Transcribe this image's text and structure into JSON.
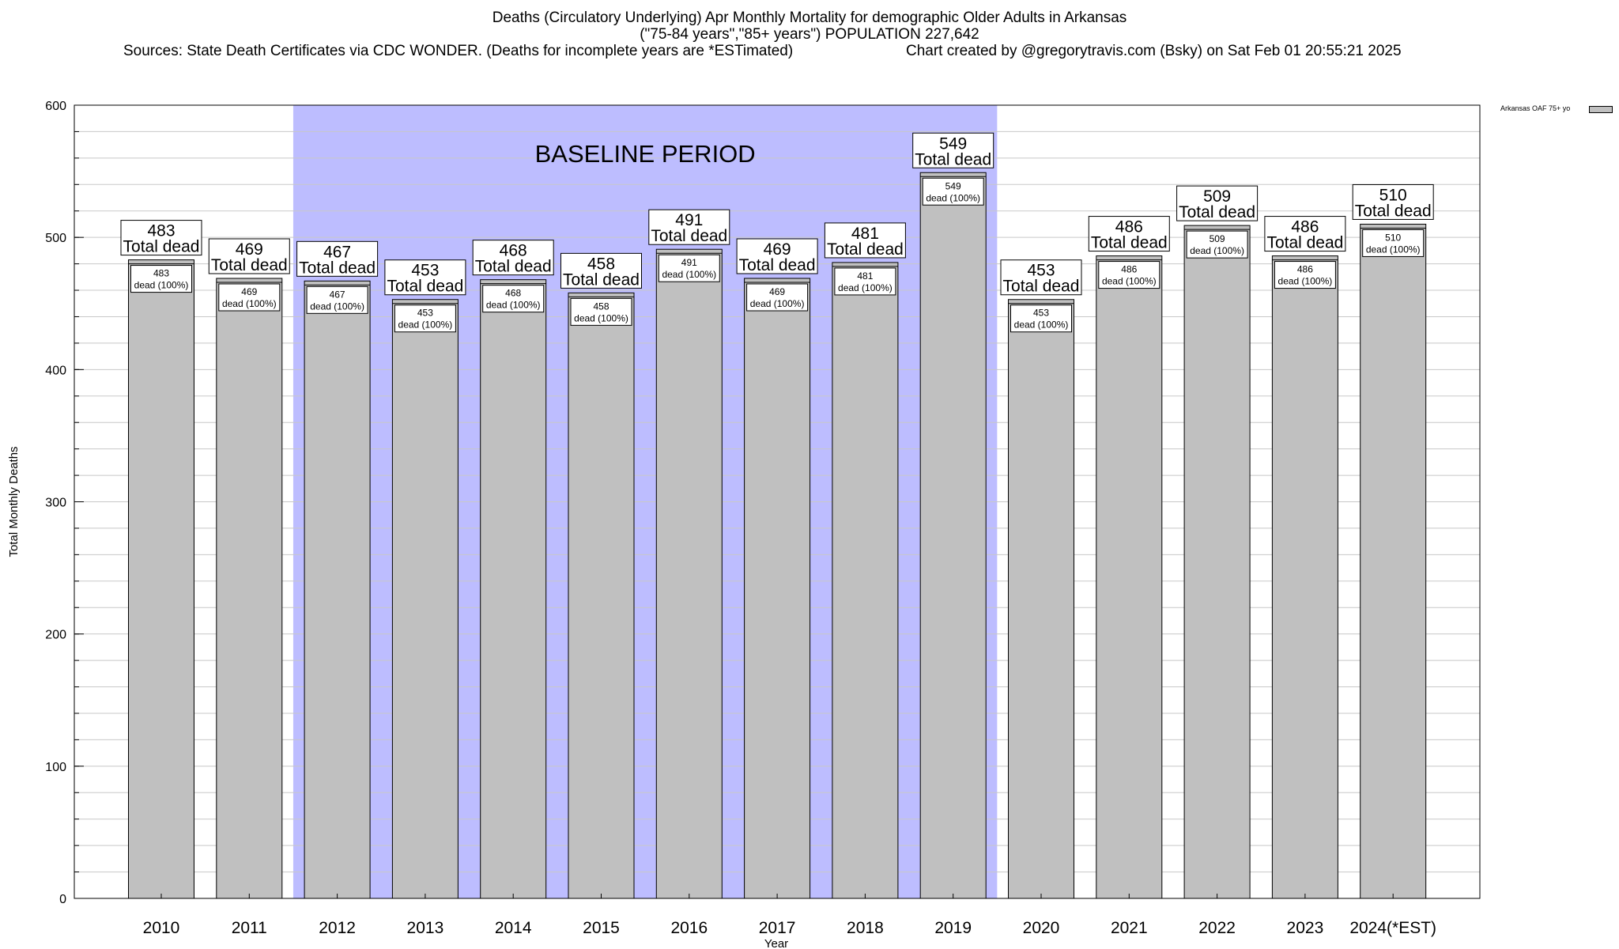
{
  "header": {
    "title_line1": "Deaths (Circulatory Underlying) Apr Monthly Mortality for demographic Older Adults in Arkansas",
    "title_line2": "(\"75-84 years\",\"85+ years\") POPULATION 227,642",
    "sources": "Sources: State Death Certificates via CDC WONDER. (Deaths for incomplete years are *ESTimated)",
    "credit": "Chart created by @gregorytravis.com (Bsky) on Sat Feb 01 20:55:21 2025"
  },
  "legend": {
    "label": "Arkansas OAF 75+ yo"
  },
  "chart_data": {
    "type": "bar",
    "categories": [
      "2010",
      "2011",
      "2012",
      "2013",
      "2014",
      "2015",
      "2016",
      "2017",
      "2018",
      "2019",
      "2020",
      "2021",
      "2022",
      "2023",
      "2024(*EST)"
    ],
    "series": [
      {
        "name": "Arkansas OAF 75+ yo",
        "values": [
          483,
          469,
          467,
          453,
          468,
          458,
          491,
          469,
          481,
          549,
          453,
          486,
          509,
          486,
          510
        ]
      }
    ],
    "total_label_suffix": "Total dead",
    "inner_label_suffix": "dead (100%)",
    "xlabel": "Year",
    "ylabel": "Total Monthly Deaths",
    "ylim": [
      0,
      600
    ],
    "yticks": [
      0,
      100,
      200,
      300,
      400,
      500,
      600
    ],
    "minor_tick_step": 20,
    "grid": true,
    "legend_position": "top-right",
    "baseline_period": {
      "label": "BASELINE PERIOD",
      "from": "2012",
      "to": "2019"
    },
    "colors": {
      "bar": "#c0c0c0",
      "baseline": "#bdbdff",
      "grid": "#c8c8c8"
    }
  }
}
